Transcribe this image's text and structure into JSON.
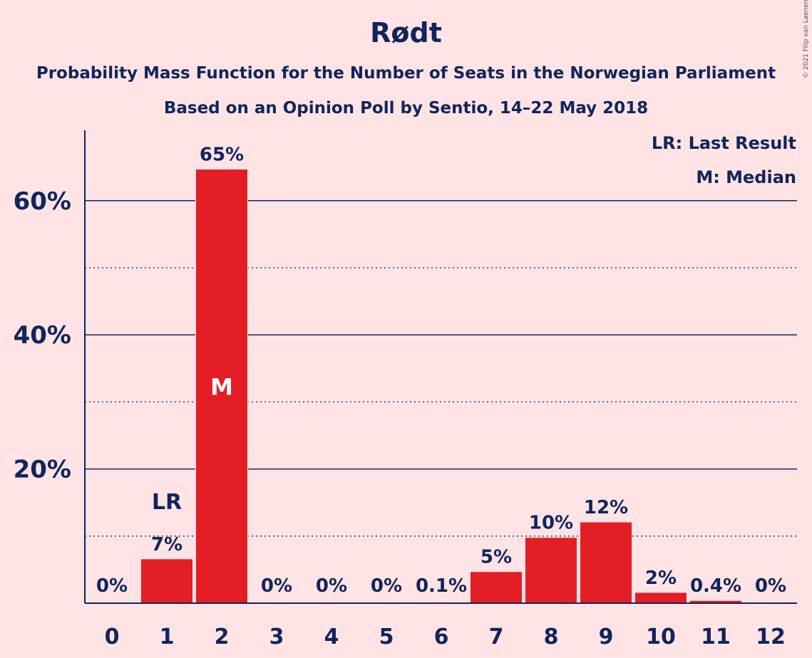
{
  "title": "Rødt",
  "subtitle1": "Probability Mass Function for the Number of Seats in the Norwegian Parliament",
  "subtitle2": "Based on an Opinion Poll by Sentio, 14–22 May 2018",
  "copyright": "© 2021 Filip van Laenen",
  "legend": {
    "last_result": "LR: Last Result",
    "median": "M: Median"
  },
  "chart_data": {
    "type": "bar",
    "categories": [
      "0",
      "1",
      "2",
      "3",
      "4",
      "5",
      "6",
      "7",
      "8",
      "9",
      "10",
      "11",
      "12"
    ],
    "values": [
      0,
      6.6,
      64.7,
      0,
      0,
      0,
      0.1,
      4.7,
      9.8,
      12.1,
      1.6,
      0.4,
      0
    ],
    "value_labels": [
      "0%",
      "7%",
      "65%",
      "0%",
      "0%",
      "0%",
      "0.1%",
      "5%",
      "10%",
      "12%",
      "2%",
      "0.4%",
      "0%"
    ],
    "y_ticks": [
      20,
      40,
      60
    ],
    "y_tick_labels": [
      "20%",
      "40%",
      "60%"
    ],
    "y_minor_ticks": [
      10,
      30,
      50
    ],
    "ylim": [
      0,
      70.5
    ],
    "last_result_category": "1",
    "last_result_label": "LR",
    "median_category": "2",
    "median_label": "M",
    "bar_color": "#E31E24",
    "text_color": "#10255A",
    "background": "#FFE3E5"
  }
}
